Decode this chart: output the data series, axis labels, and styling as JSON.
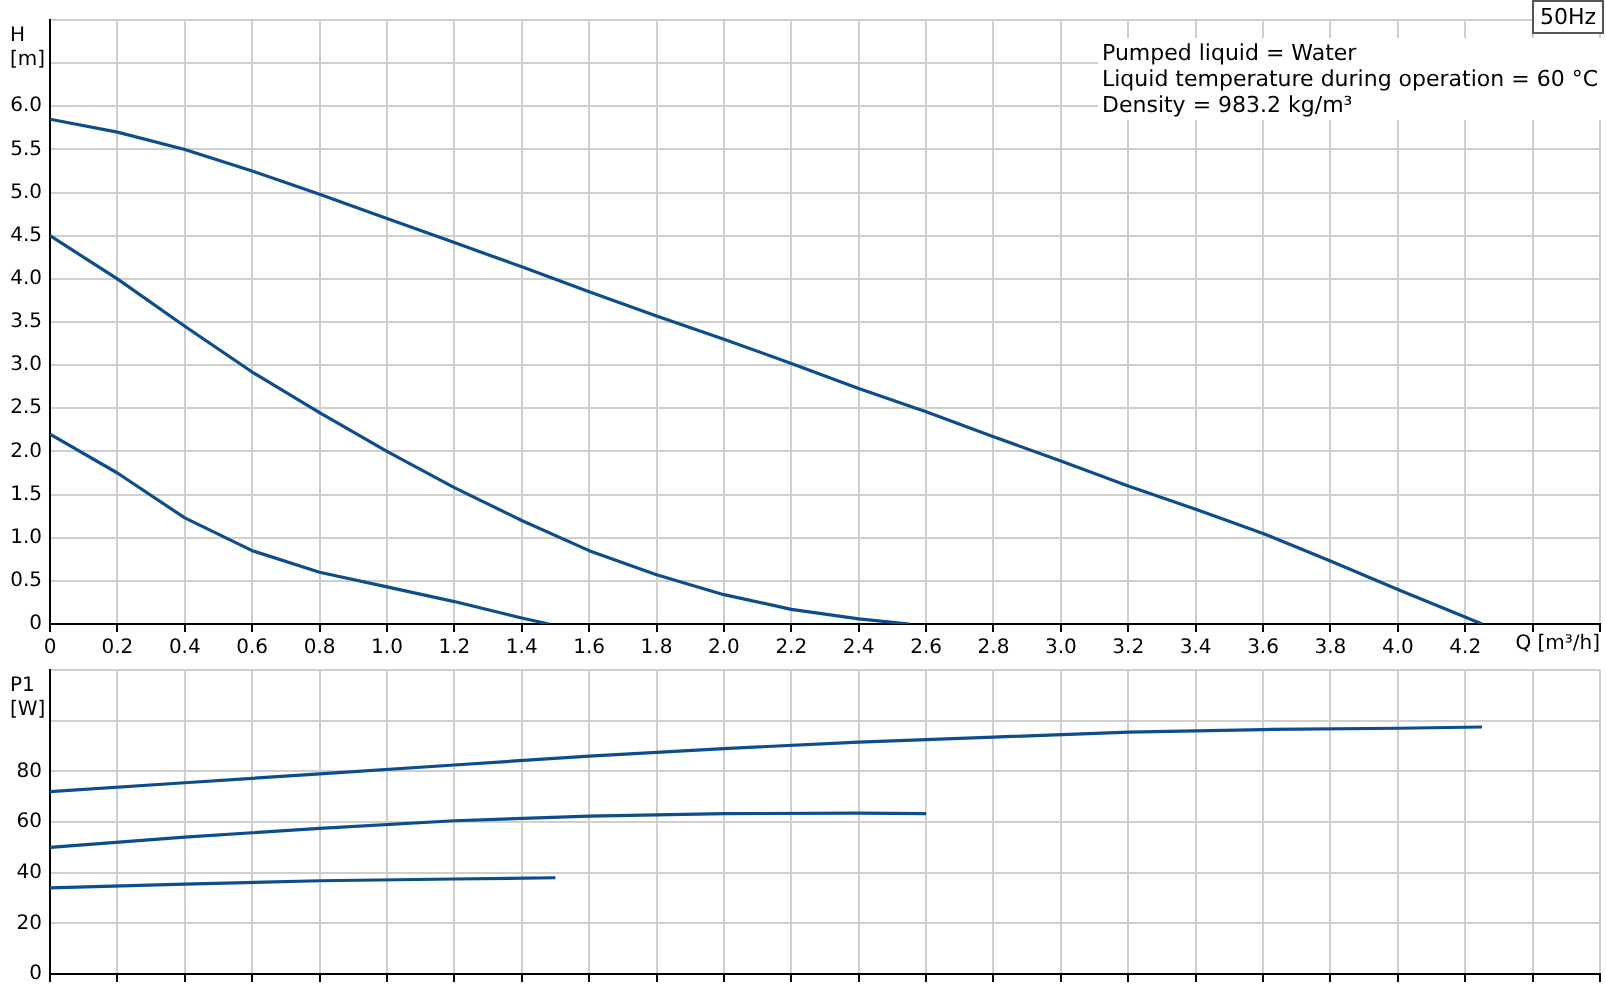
{
  "chart_data": [
    {
      "type": "line",
      "xlabel": "Q [m³/h]",
      "ylabel": "H [m]",
      "grid": true,
      "marker": "none",
      "line_style": "solid",
      "xlim": [
        0,
        4.6
      ],
      "xticks": [
        0,
        0.2,
        0.4,
        0.6,
        0.8,
        {
          "value": 1,
          "label": "1.0"
        },
        1.2,
        1.4,
        1.6,
        1.8,
        {
          "value": 2,
          "label": "2.0"
        },
        2.2,
        2.4,
        2.6,
        2.8,
        {
          "value": 3,
          "label": "3.0"
        },
        3.2,
        3.4,
        3.6,
        3.8,
        {
          "value": 4,
          "label": "4.0"
        },
        4.2,
        {
          "value": 4.4,
          "label": null
        },
        {
          "value": 4.6,
          "label": null
        }
      ],
      "ylim": [
        0,
        7
      ],
      "yticks": [
        0,
        0.5,
        {
          "value": 1,
          "label": "1.0"
        },
        1.5,
        {
          "value": 2,
          "label": "2.0"
        },
        2.5,
        {
          "value": 3,
          "label": "3.0"
        },
        3.5,
        {
          "value": 4,
          "label": "4.0"
        },
        4.5,
        {
          "value": 5,
          "label": "5.0"
        },
        5.5,
        {
          "value": 6,
          "label": "6.0"
        },
        {
          "value": 6.5,
          "label": null
        },
        {
          "value": 7,
          "label": null
        }
      ],
      "annotations": [
        "50Hz",
        "Pumped liquid = Water",
        "Liquid temperature during operation = 60 °C",
        "Density = 983.2 kg/m³"
      ],
      "series": [
        {
          "color": "#0e4d8c",
          "x": [
            0,
            0.2,
            0.4,
            0.6,
            0.8,
            1.0,
            1.2,
            1.4,
            1.6,
            1.8,
            2.0,
            2.2,
            2.4,
            2.6,
            2.8,
            3.0,
            3.2,
            3.4,
            3.6,
            3.8,
            4.0,
            4.25
          ],
          "values": [
            5.85,
            5.7,
            5.5,
            5.25,
            4.98,
            4.7,
            4.42,
            4.14,
            3.85,
            3.57,
            3.3,
            3.02,
            2.73,
            2.46,
            2.17,
            1.89,
            1.6,
            1.33,
            1.05,
            0.73,
            0.4,
            0
          ]
        },
        {
          "color": "#0e4d8c",
          "x": [
            0,
            0.2,
            0.4,
            0.6,
            0.8,
            1.0,
            1.2,
            1.4,
            1.6,
            1.8,
            2.0,
            2.2,
            2.4,
            2.55
          ],
          "values": [
            4.5,
            4.0,
            3.45,
            2.92,
            2.45,
            2.0,
            1.58,
            1.2,
            0.85,
            0.57,
            0.34,
            0.17,
            0.06,
            0
          ]
        },
        {
          "color": "#0e4d8c",
          "x": [
            0,
            0.2,
            0.4,
            0.6,
            0.8,
            1.0,
            1.2,
            1.4,
            1.48
          ],
          "values": [
            2.2,
            1.75,
            1.23,
            0.85,
            0.6,
            0.43,
            0.26,
            0.07,
            0
          ]
        }
      ]
    },
    {
      "type": "line",
      "ylabel": "P1 [W]",
      "grid": true,
      "marker": "none",
      "line_style": "solid",
      "tick_labels": "y",
      "xlim": [
        0,
        4.6
      ],
      "xticks": [
        0,
        0.2,
        0.4,
        0.6,
        0.8,
        1,
        1.2,
        1.4,
        1.6,
        1.8,
        2,
        2.2,
        2.4,
        2.6,
        2.8,
        3,
        3.2,
        3.4,
        3.6,
        3.8,
        4,
        4.2,
        4.4,
        4.6
      ],
      "ylim": [
        0,
        120
      ],
      "yticks": [
        0,
        20,
        40,
        60,
        80,
        {
          "value": 100,
          "label": null
        },
        {
          "value": 120,
          "label": null
        }
      ],
      "series": [
        {
          "color": "#0e4d8c",
          "x": [
            0,
            0.4,
            0.8,
            1.2,
            1.6,
            2.0,
            2.4,
            2.8,
            3.2,
            3.6,
            4.0,
            4.25
          ],
          "values": [
            72,
            75.5,
            79,
            82.5,
            86,
            89,
            91.5,
            93.5,
            95.5,
            96.5,
            97,
            97.5
          ]
        },
        {
          "color": "#0e4d8c",
          "x": [
            0,
            0.4,
            0.8,
            1.2,
            1.6,
            2.0,
            2.4,
            2.6
          ],
          "values": [
            50,
            54,
            57.5,
            60.5,
            62.3,
            63.3,
            63.5,
            63.3
          ]
        },
        {
          "color": "#0e4d8c",
          "x": [
            0,
            0.4,
            0.8,
            1.2,
            1.5
          ],
          "values": [
            34,
            35.5,
            36.8,
            37.5,
            38
          ]
        }
      ]
    }
  ]
}
